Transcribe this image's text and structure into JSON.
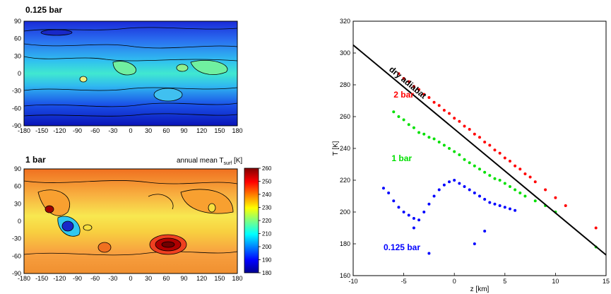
{
  "maps": {
    "top_title": "0.125 bar",
    "bottom_title": "1 bar",
    "lat_ticks": [
      "90",
      "60",
      "30",
      "0",
      "-30",
      "-60",
      "-90"
    ],
    "lon_ticks": [
      "-180",
      "-150",
      "-120",
      "-90",
      "-60",
      "-30",
      "0",
      "30",
      "60",
      "90",
      "120",
      "150",
      "180"
    ],
    "colorbar_label_main": "annual mean T",
    "colorbar_label_sub": "surf",
    "colorbar_label_unit": " [K]",
    "colorbar_ticks": [
      "260",
      "250",
      "240",
      "230",
      "220",
      "210",
      "200",
      "190",
      "180"
    ],
    "colorbar_range": [
      180,
      260
    ]
  },
  "chart_data": {
    "type": "scatter",
    "xlabel": "z [km]",
    "ylabel": "T [K]",
    "xlim": [
      -10,
      15
    ],
    "ylim": [
      160,
      320
    ],
    "x_ticks": [
      "-10",
      "-5",
      "0",
      "5",
      "10",
      "15"
    ],
    "y_ticks": [
      "320",
      "300",
      "280",
      "260",
      "240",
      "220",
      "200",
      "180",
      "160"
    ],
    "line": {
      "label": "dry adiabat",
      "x": [
        -10,
        15
      ],
      "y": [
        305,
        173
      ],
      "color": "#000000"
    },
    "series": [
      {
        "name": "2 bar",
        "color": "#ff0000",
        "x": [
          -5.5,
          -5,
          -4.5,
          -4,
          -3.5,
          -3,
          -2.5,
          -2,
          -1.5,
          -1,
          -0.5,
          0,
          0.5,
          1,
          1.5,
          2,
          2.5,
          3,
          3.5,
          4,
          4.5,
          5,
          5.5,
          6,
          6.5,
          7,
          7.5,
          8,
          9,
          10,
          11,
          14
        ],
        "y": [
          287,
          284,
          282,
          279,
          277,
          274,
          272,
          269,
          267,
          264,
          262,
          259,
          257,
          254,
          252,
          249,
          247,
          244,
          242,
          239,
          237,
          234,
          232,
          229,
          227,
          224,
          222,
          219,
          214,
          209,
          204,
          190
        ]
      },
      {
        "name": "1 bar",
        "color": "#00e000",
        "x": [
          -6,
          -5.5,
          -5,
          -4.5,
          -4,
          -3.5,
          -3,
          -2.5,
          -2,
          -1.5,
          -1,
          -0.5,
          0,
          0.5,
          1,
          1.5,
          2,
          2.5,
          3,
          3.5,
          4,
          4.5,
          5,
          5.5,
          6,
          6.5,
          7,
          8,
          9,
          10,
          14
        ],
        "y": [
          263,
          260,
          258,
          255,
          253,
          250,
          249,
          247,
          246,
          244,
          242,
          240,
          238,
          236,
          233,
          231,
          229,
          227,
          225,
          223,
          221,
          220,
          218,
          216,
          214,
          212,
          210,
          207,
          204,
          200,
          178
        ]
      },
      {
        "name": "0.125 bar",
        "color": "#0000ff",
        "x": [
          -7,
          -6.5,
          -6,
          -5.5,
          -5,
          -4.5,
          -4,
          -3.5,
          -3,
          -2.5,
          -2,
          -1.5,
          -1,
          -0.5,
          0,
          0.5,
          1,
          1.5,
          2,
          2.5,
          3,
          3.5,
          4,
          4.5,
          5,
          5.5,
          6,
          -2.5,
          -4,
          2,
          3
        ],
        "y": [
          215,
          212,
          207,
          203,
          200,
          198,
          196,
          195,
          200,
          205,
          210,
          214,
          217,
          219,
          220,
          218,
          216,
          214,
          212,
          210,
          208,
          206,
          205,
          204,
          203,
          202,
          201,
          174,
          190,
          180,
          188
        ]
      }
    ]
  }
}
